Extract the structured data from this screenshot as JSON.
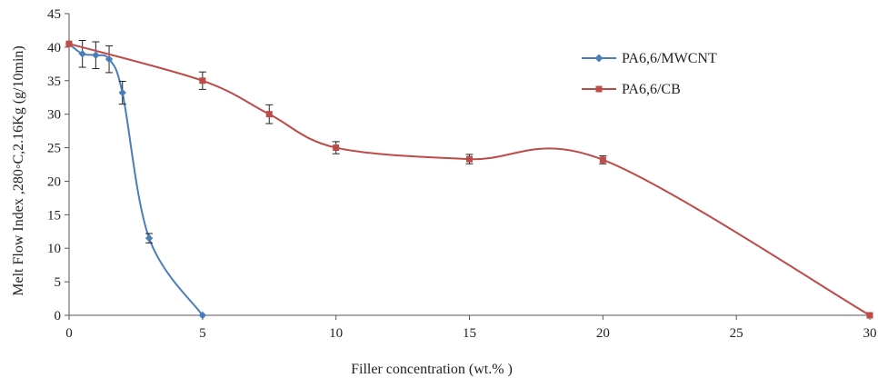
{
  "chart_data": {
    "type": "line",
    "title": "",
    "xlabel": "Filler concentration (wt.% )",
    "ylabel": "Melt Flow Index ,280◦C,2.16Kg (g/10min)",
    "xlim": [
      0,
      30
    ],
    "ylim": [
      0,
      45
    ],
    "xticks": [
      0,
      5,
      10,
      15,
      20,
      25,
      30
    ],
    "yticks": [
      0,
      5,
      10,
      15,
      20,
      25,
      30,
      35,
      40,
      45
    ],
    "grid": false,
    "smooth": true,
    "legend_position": "top-right",
    "series": [
      {
        "name": "PA6,6/MWCNT",
        "color": "#4a7ebb",
        "marker": "diamond",
        "x": [
          0,
          0.5,
          1,
          1.5,
          2,
          3,
          5
        ],
        "y": [
          40.5,
          39,
          38.8,
          38.2,
          33.2,
          11.5,
          0
        ],
        "err": [
          0,
          2,
          2,
          2,
          1.7,
          0.7,
          0
        ]
      },
      {
        "name": "PA6,6/CB",
        "color": "#be4b48",
        "marker": "square",
        "x": [
          0,
          5,
          7.5,
          10,
          15,
          20,
          30
        ],
        "y": [
          40.5,
          35,
          30,
          25,
          23.3,
          23.2,
          0
        ],
        "err": [
          0,
          1.3,
          1.4,
          0.9,
          0.7,
          0.6,
          0
        ]
      }
    ]
  }
}
